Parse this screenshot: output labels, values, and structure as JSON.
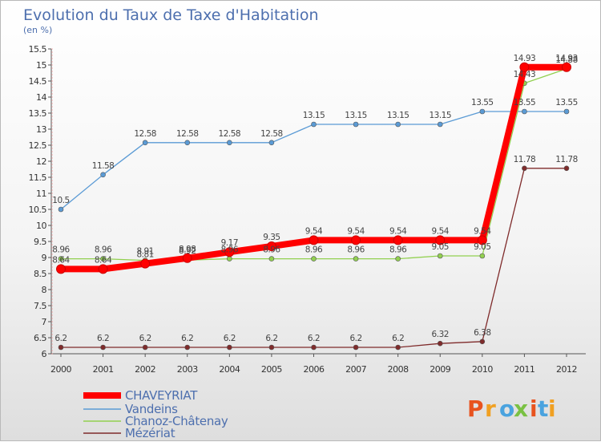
{
  "chart_data": {
    "type": "line",
    "title": "Evolution du Taux de Taxe d'Habitation",
    "subtitle": "(en %)",
    "x": [
      "2000",
      "2001",
      "2002",
      "2003",
      "2004",
      "2005",
      "2006",
      "2007",
      "2008",
      "2009",
      "2010",
      "2011",
      "2012"
    ],
    "ylim": [
      6,
      15.5
    ],
    "yticks": [
      "6",
      "6.5",
      "7",
      "7.5",
      "8",
      "8.5",
      "9",
      "9.5",
      "10",
      "10.5",
      "11",
      "11.5",
      "12",
      "12.5",
      "13",
      "13.5",
      "14",
      "14.5",
      "15",
      "15.5"
    ],
    "grid": false,
    "series": [
      {
        "name": "CHAVEYRIAT",
        "color": "#ff0000",
        "values": [
          8.64,
          8.64,
          8.81,
          8.98,
          9.17,
          9.35,
          9.54,
          9.54,
          9.54,
          9.54,
          9.54,
          14.93,
          14.93
        ],
        "labels": [
          "8.64",
          "8.64",
          "8.81",
          "8.98",
          "9.17",
          "9.35",
          "9.54",
          "9.54",
          "9.54",
          "9.54",
          "9.54",
          "14.93",
          "14.93"
        ]
      },
      {
        "name": "Vandeins",
        "color": "#5b9bd5",
        "values": [
          10.5,
          11.58,
          12.58,
          12.58,
          12.58,
          12.58,
          13.15,
          13.15,
          13.15,
          13.15,
          13.55,
          13.55,
          13.55
        ],
        "labels": [
          "10.5",
          "11.58",
          "12.58",
          "12.58",
          "12.58",
          "12.58",
          "13.15",
          "13.15",
          "13.15",
          "13.15",
          "13.55",
          "13.55",
          "13.55"
        ]
      },
      {
        "name": "Chanoz-Châtenay",
        "color": "#92d050",
        "values": [
          8.96,
          8.96,
          8.91,
          8.92,
          8.96,
          8.96,
          8.96,
          8.96,
          8.96,
          9.05,
          9.05,
          14.43,
          14.88
        ],
        "labels": [
          "8.96",
          "8.96",
          "8.91",
          "8.92",
          "8.96",
          "8.96",
          "8.96",
          "8.96",
          "8.96",
          "9.05",
          "9.05",
          "14.43",
          "14.88"
        ]
      },
      {
        "name": "Mézériat",
        "color": "#7f2b2b",
        "values": [
          6.2,
          6.2,
          6.2,
          6.2,
          6.2,
          6.2,
          6.2,
          6.2,
          6.2,
          6.32,
          6.38,
          11.78,
          11.78
        ],
        "labels": [
          "6.2",
          "6.2",
          "6.2",
          "6.2",
          "6.2",
          "6.2",
          "6.2",
          "6.2",
          "6.2",
          "6.32",
          "6.38",
          "11.78",
          "11.78"
        ]
      }
    ],
    "legend_position": "bottom-left"
  },
  "logo": {
    "letters": [
      "P",
      "r",
      "o",
      "x",
      "i",
      "t",
      "i"
    ],
    "colors": [
      "#e8531f",
      "#f0a022",
      "#4aa3df",
      "#7ac143",
      "#e8531f",
      "#4aa3df",
      "#f0a022"
    ]
  }
}
